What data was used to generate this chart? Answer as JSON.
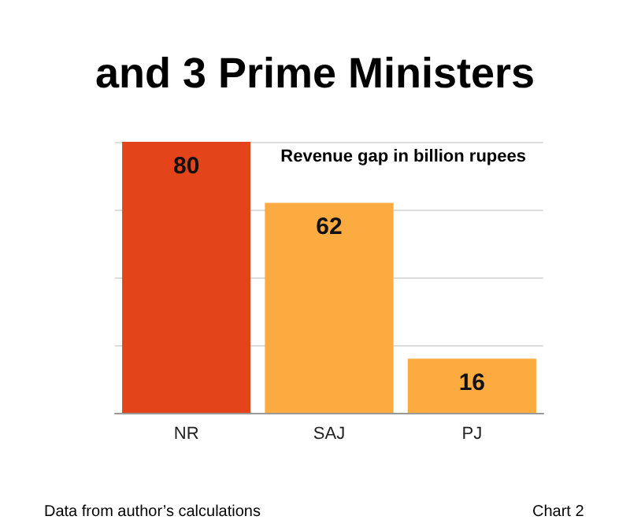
{
  "chart_data": {
    "type": "bar",
    "title": "and 3 Prime Ministers",
    "categories": [
      "NR",
      "SAJ",
      "PJ"
    ],
    "values": [
      80,
      62,
      16
    ],
    "colors": [
      "#e4441a",
      "#fcab40",
      "#fcab40"
    ],
    "ylim": [
      0,
      80
    ],
    "yticks": [
      {
        "value": 0,
        "label": null
      },
      {
        "value": 20,
        "label": null
      },
      {
        "value": 40,
        "label": null
      },
      {
        "value": 60,
        "label": null
      },
      {
        "value": 80,
        "label": null
      }
    ],
    "grid": "y",
    "tick_labels": "x",
    "data_labels": true,
    "annotations": [
      "Revenue gap in billion rupees",
      "Data from author’s calculations",
      "Chart 2"
    ]
  }
}
